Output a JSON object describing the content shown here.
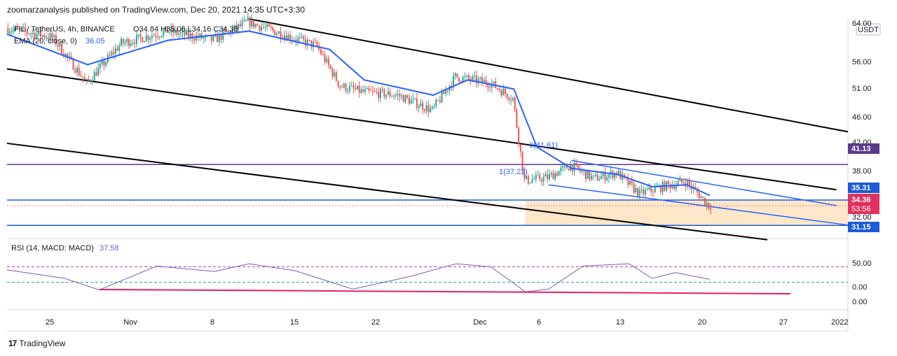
{
  "header": {
    "publisher_line": "zoomarzanalysis published on TradingView.com, Dec 20, 2021 14:35 UTC+3:30"
  },
  "legend": {
    "symbol_line": "FIL / TetherUS, 4h, BINANCE",
    "ohlc_line": "O34.84 H35.06 L34.16 C34.36",
    "ema_line": "EMA (20, close, 0)",
    "ema_value": "36.05",
    "rsi_line": "RSI (14, MACD: MACD)",
    "rsi_value": "37.58"
  },
  "price_axis": {
    "currency": "USDT",
    "ticks": [
      "64.00",
      "56.00",
      "51.00",
      "46.00",
      "42.00",
      "38.00",
      "32.00"
    ],
    "rsi_ticks": [
      "50.00",
      "0.00",
      "0.00"
    ]
  },
  "price_badges": [
    {
      "label": "41.13",
      "color": "#5b3a8a"
    },
    {
      "label": "35.31",
      "color": "#1e5bd6"
    },
    {
      "label": "34.36",
      "color": "#e0315f"
    },
    {
      "label": "53:56",
      "color": "#e0315f"
    },
    {
      "label": "31.15",
      "color": "#1e5bd6"
    }
  ],
  "time_axis": {
    "ticks": [
      "25",
      "Nov",
      "8",
      "15",
      "22",
      "Dec",
      "6",
      "13",
      "20",
      "27",
      "2022"
    ]
  },
  "annotations": {
    "fib_top": "0(41.61)",
    "fib_bottom": "1(37.23)"
  },
  "footer": {
    "brand": "TradingView",
    "logo_glyph": "17"
  },
  "colors": {
    "candle_up": "#26a69a",
    "candle_down": "#ef5350",
    "ema": "#2962ff",
    "channel": "#000000",
    "wedge": "#2962ff",
    "resistance": "#5b3a8a",
    "support": "#1e5bd6",
    "zone_fill": "#fde7c8",
    "rsi_line": "#7e57c2",
    "rsi_trend": "#e91e63"
  },
  "chart_data": {
    "type": "candlestick",
    "symbol": "FIL / TetherUS",
    "timeframe": "4h",
    "x_range": [
      "2021-10-20",
      "2022-01-01"
    ],
    "ylim": [
      29,
      65
    ],
    "last_close": 34.36,
    "levels": [
      41.13,
      35.31,
      31.15
    ],
    "ema_period": 20,
    "price_path": [
      {
        "x": "2021-10-20",
        "y": 63.5
      },
      {
        "x": "2021-10-24",
        "y": 62.0
      },
      {
        "x": "2021-10-27",
        "y": 54.5
      },
      {
        "x": "2021-10-30",
        "y": 61.0
      },
      {
        "x": "2021-11-03",
        "y": 63.0
      },
      {
        "x": "2021-11-07",
        "y": 61.5
      },
      {
        "x": "2021-11-10",
        "y": 64.5
      },
      {
        "x": "2021-11-13",
        "y": 62.5
      },
      {
        "x": "2021-11-16",
        "y": 60.5
      },
      {
        "x": "2021-11-18",
        "y": 54.0
      },
      {
        "x": "2021-11-20",
        "y": 53.0
      },
      {
        "x": "2021-11-23",
        "y": 52.5
      },
      {
        "x": "2021-11-26",
        "y": 50.0
      },
      {
        "x": "2021-11-28",
        "y": 55.5
      },
      {
        "x": "2021-12-01",
        "y": 54.5
      },
      {
        "x": "2021-12-03",
        "y": 52.0
      },
      {
        "x": "2021-12-04",
        "y": 38.5
      },
      {
        "x": "2021-12-06",
        "y": 39.0
      },
      {
        "x": "2021-12-08",
        "y": 41.0
      },
      {
        "x": "2021-12-10",
        "y": 38.8
      },
      {
        "x": "2021-12-12",
        "y": 39.8
      },
      {
        "x": "2021-12-14",
        "y": 36.3
      },
      {
        "x": "2021-12-16",
        "y": 37.5
      },
      {
        "x": "2021-12-18",
        "y": 38.3
      },
      {
        "x": "2021-12-19",
        "y": 36.5
      },
      {
        "x": "2021-12-20",
        "y": 34.4
      }
    ],
    "ema_path": [
      {
        "x": "2021-10-20",
        "y": 62.5
      },
      {
        "x": "2021-10-27",
        "y": 57.5
      },
      {
        "x": "2021-11-03",
        "y": 61.5
      },
      {
        "x": "2021-11-10",
        "y": 63.0
      },
      {
        "x": "2021-11-17",
        "y": 60.0
      },
      {
        "x": "2021-11-20",
        "y": 55.0
      },
      {
        "x": "2021-11-26",
        "y": 52.5
      },
      {
        "x": "2021-11-29",
        "y": 55.0
      },
      {
        "x": "2021-12-03",
        "y": 53.5
      },
      {
        "x": "2021-12-05",
        "y": 44.0
      },
      {
        "x": "2021-12-08",
        "y": 40.5
      },
      {
        "x": "2021-12-12",
        "y": 39.5
      },
      {
        "x": "2021-12-15",
        "y": 37.5
      },
      {
        "x": "2021-12-18",
        "y": 37.8
      },
      {
        "x": "2021-12-20",
        "y": 36.05
      }
    ],
    "trendlines": [
      {
        "name": "channel-upper",
        "from": {
          "x": "2021-11-10",
          "y": 65.0
        },
        "to": {
          "x": "2022-01-01",
          "y": 46.5
        }
      },
      {
        "name": "channel-middle",
        "from": {
          "x": "2021-10-20",
          "y": 56.8
        },
        "to": {
          "x": "2021-12-31",
          "y": 37.0
        }
      },
      {
        "name": "channel-lower",
        "from": {
          "x": "2021-10-20",
          "y": 44.6
        },
        "to": {
          "x": "2021-12-25",
          "y": 28.8
        }
      },
      {
        "name": "wedge-upper",
        "from": {
          "x": "2021-12-08",
          "y": 41.8
        },
        "to": {
          "x": "2021-12-31",
          "y": 34.4
        }
      },
      {
        "name": "wedge-lower",
        "from": {
          "x": "2021-12-06",
          "y": 37.8
        },
        "to": {
          "x": "2022-01-01",
          "y": 31.2
        }
      }
    ],
    "rsi": {
      "last": 37.58,
      "upper_band": 70,
      "lower_band": 30,
      "path": [
        {
          "x": "2021-10-20",
          "y": 62
        },
        {
          "x": "2021-10-25",
          "y": 40
        },
        {
          "x": "2021-10-28",
          "y": 10
        },
        {
          "x": "2021-11-02",
          "y": 72
        },
        {
          "x": "2021-11-07",
          "y": 58
        },
        {
          "x": "2021-11-10",
          "y": 78
        },
        {
          "x": "2021-11-14",
          "y": 60
        },
        {
          "x": "2021-11-19",
          "y": 12
        },
        {
          "x": "2021-11-24",
          "y": 45
        },
        {
          "x": "2021-11-28",
          "y": 78
        },
        {
          "x": "2021-12-01",
          "y": 70
        },
        {
          "x": "2021-12-04",
          "y": 5
        },
        {
          "x": "2021-12-06",
          "y": 12
        },
        {
          "x": "2021-12-09",
          "y": 72
        },
        {
          "x": "2021-12-13",
          "y": 78
        },
        {
          "x": "2021-12-15",
          "y": 40
        },
        {
          "x": "2021-12-17",
          "y": 55
        },
        {
          "x": "2021-12-20",
          "y": 37.58
        }
      ],
      "trendline": {
        "from": {
          "x": "2021-10-28",
          "y": 11
        },
        "to": {
          "x": "2021-12-27",
          "y": 0
        }
      }
    }
  }
}
